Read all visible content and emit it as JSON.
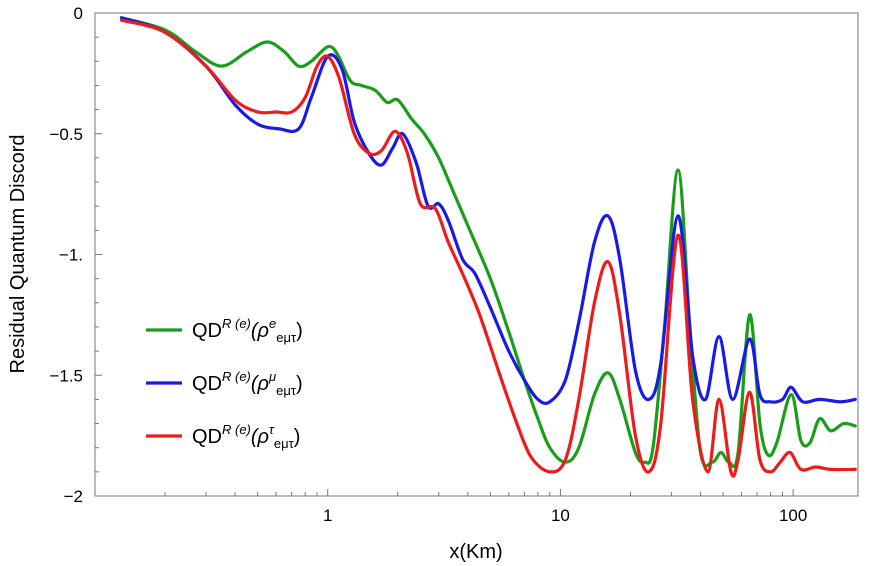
{
  "chart_data": {
    "type": "line",
    "title": "",
    "xlabel": "x(Km)",
    "ylabel": "Residual Quantum Discord",
    "x_scale": "log",
    "xlim": [
      0.1,
      190
    ],
    "ylim": [
      -2.0,
      0.0
    ],
    "x_ticks": [
      {
        "value": 1,
        "label": "1"
      },
      {
        "value": 10,
        "label": "10"
      },
      {
        "value": 100,
        "label": "100"
      }
    ],
    "y_ticks": [
      {
        "value": 0,
        "label": "0"
      },
      {
        "value": -0.5,
        "label": "-0.5"
      },
      {
        "value": -1.0,
        "label": "-1."
      },
      {
        "value": -1.5,
        "label": "-1.5"
      },
      {
        "value": -2.0,
        "label": "-2"
      }
    ],
    "grid": false,
    "legend_position": "left-middle",
    "series": [
      {
        "name": "QD^{R(e)}(ρ^e_{eμτ})",
        "legend": {
          "base": "QD",
          "sup1": "R (e)",
          "paren": "(ρ",
          "sup2": "e",
          "sub": "eμτ",
          "close": ")"
        },
        "color": "#1a9e1a",
        "points": [
          [
            0.13,
            -0.02
          ],
          [
            0.2,
            -0.07
          ],
          [
            0.27,
            -0.16
          ],
          [
            0.35,
            -0.22
          ],
          [
            0.45,
            -0.16
          ],
          [
            0.55,
            -0.12
          ],
          [
            0.65,
            -0.16
          ],
          [
            0.75,
            -0.22
          ],
          [
            0.85,
            -0.2
          ],
          [
            1.0,
            -0.14
          ],
          [
            1.1,
            -0.17
          ],
          [
            1.25,
            -0.28
          ],
          [
            1.4,
            -0.3
          ],
          [
            1.6,
            -0.32
          ],
          [
            1.8,
            -0.37
          ],
          [
            2.0,
            -0.36
          ],
          [
            2.3,
            -0.44
          ],
          [
            2.6,
            -0.5
          ],
          [
            3.0,
            -0.6
          ],
          [
            3.5,
            -0.75
          ],
          [
            4.0,
            -0.88
          ],
          [
            5.0,
            -1.1
          ],
          [
            6.0,
            -1.32
          ],
          [
            7.0,
            -1.52
          ],
          [
            8.0,
            -1.68
          ],
          [
            9.0,
            -1.8
          ],
          [
            10.5,
            -1.86
          ],
          [
            12.0,
            -1.8
          ],
          [
            14.0,
            -1.58
          ],
          [
            16.0,
            -1.49
          ],
          [
            18.0,
            -1.6
          ],
          [
            21.0,
            -1.82
          ],
          [
            23.0,
            -1.86
          ],
          [
            25.0,
            -1.8
          ],
          [
            28.0,
            -1.3
          ],
          [
            32.0,
            -0.65
          ],
          [
            36.0,
            -1.3
          ],
          [
            40.0,
            -1.82
          ],
          [
            45.0,
            -1.86
          ],
          [
            49.0,
            -1.82
          ],
          [
            53.0,
            -1.86
          ],
          [
            58.0,
            -1.82
          ],
          [
            65.0,
            -1.25
          ],
          [
            72.0,
            -1.7
          ],
          [
            78.0,
            -1.83
          ],
          [
            85.0,
            -1.78
          ],
          [
            98.0,
            -1.58
          ],
          [
            108.0,
            -1.77
          ],
          [
            118.0,
            -1.78
          ],
          [
            130.0,
            -1.68
          ],
          [
            145.0,
            -1.73
          ],
          [
            165.0,
            -1.7
          ],
          [
            185.0,
            -1.71
          ]
        ]
      },
      {
        "name": "QD^{R(e)}(ρ^μ_{eμτ})",
        "legend": {
          "base": "QD",
          "sup1": "R (e)",
          "paren": "(ρ",
          "sup2": "μ",
          "sub": "eμτ",
          "close": ")"
        },
        "color": "#1a1ae6",
        "points": [
          [
            0.13,
            -0.02
          ],
          [
            0.2,
            -0.08
          ],
          [
            0.3,
            -0.22
          ],
          [
            0.4,
            -0.38
          ],
          [
            0.5,
            -0.46
          ],
          [
            0.62,
            -0.48
          ],
          [
            0.75,
            -0.48
          ],
          [
            0.85,
            -0.35
          ],
          [
            1.0,
            -0.18
          ],
          [
            1.15,
            -0.23
          ],
          [
            1.3,
            -0.45
          ],
          [
            1.5,
            -0.58
          ],
          [
            1.7,
            -0.63
          ],
          [
            1.9,
            -0.56
          ],
          [
            2.1,
            -0.5
          ],
          [
            2.4,
            -0.62
          ],
          [
            2.7,
            -0.8
          ],
          [
            3.0,
            -0.79
          ],
          [
            3.3,
            -0.86
          ],
          [
            3.8,
            -1.02
          ],
          [
            4.3,
            -1.08
          ],
          [
            5.0,
            -1.22
          ],
          [
            6.0,
            -1.4
          ],
          [
            7.0,
            -1.52
          ],
          [
            8.0,
            -1.6
          ],
          [
            9.0,
            -1.61
          ],
          [
            10.5,
            -1.52
          ],
          [
            12.0,
            -1.28
          ],
          [
            14.0,
            -0.95
          ],
          [
            16.0,
            -0.84
          ],
          [
            18.0,
            -1.02
          ],
          [
            21.0,
            -1.48
          ],
          [
            24.0,
            -1.6
          ],
          [
            27.0,
            -1.45
          ],
          [
            32.0,
            -0.84
          ],
          [
            37.0,
            -1.42
          ],
          [
            42.0,
            -1.6
          ],
          [
            48.0,
            -1.34
          ],
          [
            55.0,
            -1.6
          ],
          [
            65.0,
            -1.35
          ],
          [
            72.0,
            -1.58
          ],
          [
            80.0,
            -1.61
          ],
          [
            90.0,
            -1.6
          ],
          [
            98.0,
            -1.55
          ],
          [
            110.0,
            -1.61
          ],
          [
            130.0,
            -1.6
          ],
          [
            160.0,
            -1.61
          ],
          [
            185.0,
            -1.6
          ]
        ]
      },
      {
        "name": "QD^{R(e)}(ρ^τ_{eμτ})",
        "legend": {
          "base": "QD",
          "sup1": "R (e)",
          "paren": "(ρ",
          "sup2": "τ",
          "sub": "eμτ",
          "close": ")"
        },
        "color": "#ee1b1b",
        "points": [
          [
            0.13,
            -0.03
          ],
          [
            0.2,
            -0.08
          ],
          [
            0.3,
            -0.22
          ],
          [
            0.4,
            -0.36
          ],
          [
            0.5,
            -0.41
          ],
          [
            0.6,
            -0.41
          ],
          [
            0.7,
            -0.41
          ],
          [
            0.8,
            -0.35
          ],
          [
            0.9,
            -0.22
          ],
          [
            1.0,
            -0.18
          ],
          [
            1.12,
            -0.27
          ],
          [
            1.3,
            -0.5
          ],
          [
            1.5,
            -0.58
          ],
          [
            1.7,
            -0.57
          ],
          [
            1.95,
            -0.49
          ],
          [
            2.2,
            -0.58
          ],
          [
            2.5,
            -0.79
          ],
          [
            2.9,
            -0.81
          ],
          [
            3.3,
            -0.95
          ],
          [
            3.8,
            -1.08
          ],
          [
            4.5,
            -1.25
          ],
          [
            5.5,
            -1.5
          ],
          [
            6.5,
            -1.7
          ],
          [
            7.5,
            -1.84
          ],
          [
            9.0,
            -1.9
          ],
          [
            10.5,
            -1.85
          ],
          [
            12.0,
            -1.6
          ],
          [
            14.0,
            -1.2
          ],
          [
            16.0,
            -1.03
          ],
          [
            18.0,
            -1.25
          ],
          [
            21.0,
            -1.75
          ],
          [
            24.0,
            -1.9
          ],
          [
            27.0,
            -1.7
          ],
          [
            32.0,
            -0.92
          ],
          [
            37.0,
            -1.6
          ],
          [
            43.0,
            -1.9
          ],
          [
            48.0,
            -1.6
          ],
          [
            54.0,
            -1.9
          ],
          [
            58.0,
            -1.85
          ],
          [
            65.0,
            -1.57
          ],
          [
            72.0,
            -1.85
          ],
          [
            80.0,
            -1.9
          ],
          [
            88.0,
            -1.86
          ],
          [
            97.0,
            -1.82
          ],
          [
            108.0,
            -1.89
          ],
          [
            125.0,
            -1.88
          ],
          [
            145.0,
            -1.89
          ],
          [
            185.0,
            -1.89
          ]
        ]
      }
    ]
  }
}
